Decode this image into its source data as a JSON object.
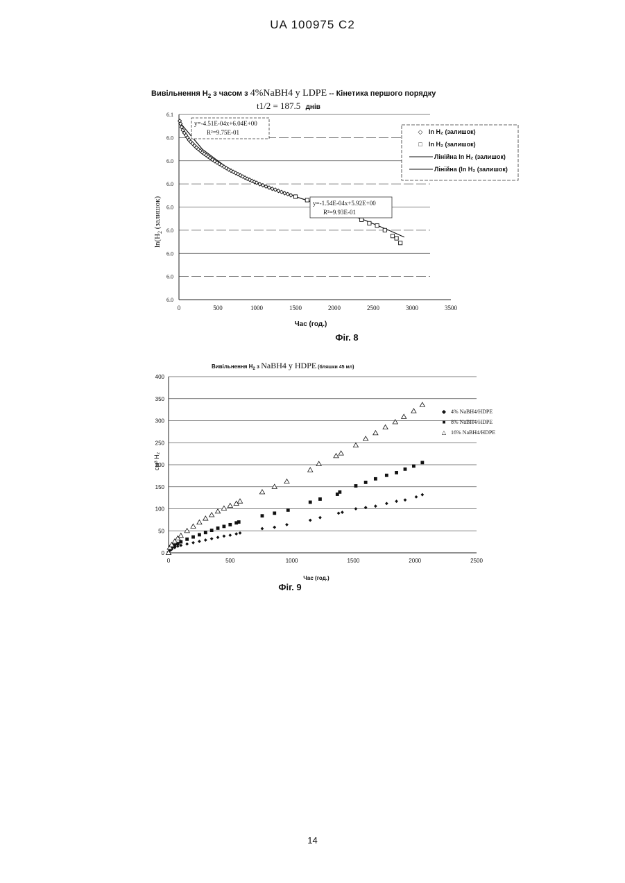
{
  "header": {
    "text": "UA   100975   C2"
  },
  "page_number": "14",
  "fig8": {
    "title_prefix": "Вивільнення H",
    "title_sub": "2",
    "title_mid": " з часом з ",
    "title_formula": "4%NaBH4 у LDPE",
    "title_suffix": " -- Кінетика першого порядку",
    "halflife": "t1/2 = 187.5",
    "halflife_unit": "днів",
    "ylabel": "ln(H",
    "ylabel_sub": "2",
    "ylabel_suffix": " (залишок)",
    "xlabel": "Час (год.)",
    "caption": "Фіг. 8",
    "eq1_line1": "y=-4.51E-04x+6.04E+00",
    "eq1_line2": "R²=9.75E-01",
    "eq2_line1": "y=-1.54E-04x+5.92E+00",
    "eq2_line2": "R²=9.93E-01",
    "legend": [
      {
        "marker": "◇",
        "label": "ln H₂ (залишок)"
      },
      {
        "marker": "□",
        "label": "ln H₂ (залишок)"
      },
      {
        "marker": "line",
        "label": "Лінійна ln H₂ (залишок)"
      },
      {
        "marker": "line",
        "label": "Лінійна (ln H₂ (залишок)"
      }
    ]
  },
  "fig9": {
    "title_prefix": "Вивільнення H",
    "title_sub": "2",
    "title_mid": " з ",
    "title_formula": "NaBH4 у HDPE",
    "title_suffix": " (бляшки 45 мл)",
    "ylabel": "см³ H₂",
    "xlabel": "Час (год.)",
    "caption": "Фіг. 9",
    "legend": [
      {
        "marker": "◆",
        "label": "4% NaBH4/HDPE"
      },
      {
        "marker": "■",
        "label": "8% NaBH4/HDPE"
      },
      {
        "marker": "△",
        "label": "16% NaBH4/HDPE"
      }
    ]
  },
  "chart_data": [
    {
      "type": "scatter",
      "title": "Вивільнення H2 з часом з 4%NaBH4 у LDPE -- Кінетика першого порядку",
      "subtitle": "t1/2 = 187.5 днів",
      "xlabel": "Час (год.)",
      "ylabel": "ln(H2 (залишок)",
      "xlim": [
        0,
        3500
      ],
      "x_ticks": [
        0,
        500,
        1000,
        1500,
        2000,
        2500,
        3000,
        3500
      ],
      "y_tick_labels": [
        "6.0",
        "6.0",
        "6.0",
        "6.0",
        "6.0",
        "6.0",
        "6.0",
        "6.0",
        "6.1"
      ],
      "ylim": [
        0,
        8
      ],
      "grid": true,
      "legend_position": "top-right",
      "series": [
        {
          "name": "ln H₂ (залишок)",
          "marker": "diamond",
          "x": [
            10,
            20,
            35,
            50,
            70,
            90,
            110,
            130,
            150,
            175,
            200,
            225,
            250,
            275,
            300,
            325,
            350,
            375,
            400,
            430,
            460,
            490,
            520,
            550,
            580,
            610,
            640,
            670,
            700,
            730,
            760,
            790,
            820,
            850,
            880,
            910,
            940,
            970,
            1000,
            1040,
            1080,
            1120,
            1160,
            1200,
            1240,
            1280,
            1320,
            1360,
            1400,
            1440
          ],
          "y": [
            7.72,
            7.6,
            7.45,
            7.32,
            7.2,
            7.1,
            7.0,
            6.9,
            6.82,
            6.74,
            6.65,
            6.57,
            6.5,
            6.43,
            6.36,
            6.3,
            6.24,
            6.18,
            6.12,
            6.05,
            5.98,
            5.92,
            5.86,
            5.8,
            5.74,
            5.68,
            5.62,
            5.57,
            5.52,
            5.47,
            5.42,
            5.37,
            5.32,
            5.27,
            5.22,
            5.18,
            5.13,
            5.09,
            5.05,
            4.99,
            4.94,
            4.89,
            4.84,
            4.79,
            4.75,
            4.7,
            4.65,
            4.6,
            4.56,
            4.51
          ]
        },
        {
          "name": "ln H₂ (залишок)",
          "marker": "square",
          "x": [
            1500,
            1650,
            1750,
            1850,
            2000,
            2050,
            2200,
            2350,
            2450,
            2550,
            2650,
            2750,
            2800,
            2850
          ],
          "y": [
            4.45,
            4.3,
            4.2,
            4.05,
            3.85,
            3.8,
            3.65,
            3.45,
            3.3,
            3.2,
            3.0,
            2.75,
            2.65,
            2.45
          ]
        }
      ],
      "trendlines": [
        {
          "name": "Лінійна ln H₂ (залишок)",
          "x": [
            0,
            300,
            600,
            900,
            1200,
            1500,
            1800,
            2100,
            2400,
            2700,
            2900
          ],
          "y": [
            7.7,
            6.5,
            5.75,
            5.2,
            4.78,
            4.45,
            4.12,
            3.78,
            3.42,
            3.0,
            2.7
          ]
        }
      ]
    },
    {
      "type": "scatter",
      "title": "Вивільнення H2 з NaBH4 у HDPE (бляшки 45 мл)",
      "xlabel": "Час (год.)",
      "ylabel": "см³ H₂",
      "xlim": [
        0,
        2500
      ],
      "ylim": [
        0,
        400
      ],
      "x_ticks": [
        0,
        500,
        1000,
        1500,
        2000,
        2500
      ],
      "y_ticks": [
        0,
        50,
        100,
        150,
        200,
        250,
        300,
        350,
        400
      ],
      "grid": true,
      "legend_position": "right",
      "series": [
        {
          "name": "4% NaBH4/HDPE",
          "marker": "diamond",
          "x": [
            0,
            10,
            25,
            50,
            75,
            100,
            150,
            200,
            250,
            300,
            350,
            400,
            450,
            500,
            550,
            580,
            760,
            860,
            960,
            1150,
            1230,
            1380,
            1410,
            1520,
            1600,
            1680,
            1770,
            1850,
            1920,
            2010,
            2060
          ],
          "y": [
            0,
            5,
            8,
            12,
            15,
            17,
            20,
            23,
            26,
            29,
            32,
            35,
            38,
            40,
            43,
            45,
            55,
            58,
            64,
            74,
            80,
            90,
            92,
            100,
            103,
            106,
            112,
            117,
            120,
            127,
            132
          ]
        },
        {
          "name": "8% NaBH4/HDPE",
          "marker": "square",
          "x": [
            0,
            10,
            25,
            50,
            75,
            100,
            150,
            200,
            250,
            300,
            350,
            400,
            450,
            500,
            550,
            570,
            760,
            860,
            970,
            1150,
            1230,
            1370,
            1390,
            1520,
            1600,
            1680,
            1770,
            1850,
            1920,
            1990,
            2060
          ],
          "y": [
            0,
            8,
            12,
            17,
            21,
            25,
            31,
            36,
            41,
            46,
            51,
            56,
            60,
            64,
            68,
            70,
            84,
            90,
            97,
            115,
            122,
            133,
            138,
            152,
            160,
            168,
            176,
            182,
            190,
            197,
            205
          ]
        },
        {
          "name": "16% NaBH4/HDPE",
          "marker": "triangle",
          "x": [
            0,
            10,
            25,
            50,
            75,
            100,
            150,
            200,
            250,
            300,
            350,
            400,
            450,
            500,
            550,
            580,
            760,
            860,
            960,
            1150,
            1220,
            1360,
            1400,
            1520,
            1600,
            1680,
            1760,
            1840,
            1910,
            1990,
            2060
          ],
          "y": [
            0,
            12,
            18,
            26,
            33,
            39,
            50,
            60,
            69,
            78,
            86,
            94,
            101,
            107,
            112,
            117,
            138,
            150,
            162,
            188,
            202,
            220,
            226,
            244,
            259,
            272,
            285,
            297,
            309,
            322,
            336
          ]
        }
      ]
    }
  ]
}
